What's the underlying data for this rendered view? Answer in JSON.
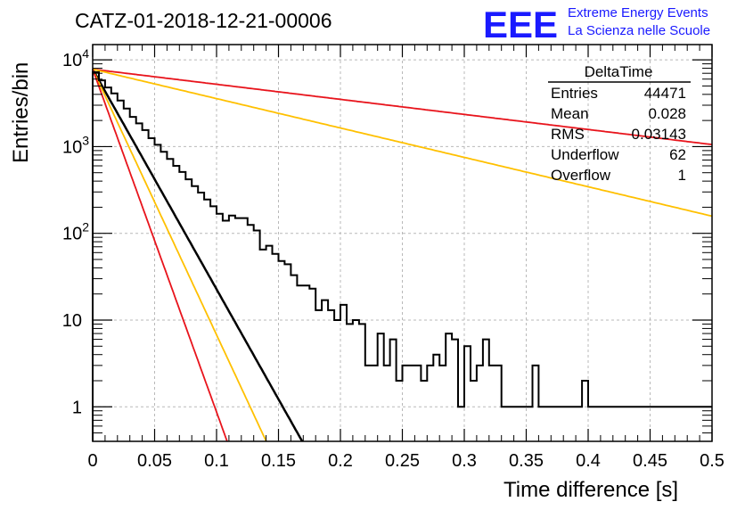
{
  "header": {
    "title": "CATZ-01-2018-12-21-00006",
    "logo_text": "EEE",
    "logo_line1": "Extreme Energy Events",
    "logo_line2": "La Scienza nelle Scuole"
  },
  "stats_box": {
    "name": "DeltaTime",
    "rows": [
      {
        "label": "Entries",
        "value": "44471"
      },
      {
        "label": "Mean",
        "value": "0.028"
      },
      {
        "label": "RMS",
        "value": "0.03143"
      },
      {
        "label": "Underflow",
        "value": "62"
      },
      {
        "label": "Overflow",
        "value": "1"
      }
    ]
  },
  "colors": {
    "histogram": "#000000",
    "fit_main": "#000000",
    "curve_red": "#e8141c",
    "curve_orange": "#ffc000",
    "logo": "#1a1aff"
  },
  "chart_data": {
    "type": "line",
    "title": "CATZ-01-2018-12-21-00006",
    "xlabel": "Time difference [s]",
    "ylabel": "Entries/bin",
    "xlim": [
      0,
      0.5
    ],
    "ylim": [
      0.4,
      15000
    ],
    "ylog": true,
    "grid": true,
    "x_ticks": [
      "0",
      "0.05",
      "0.1",
      "0.15",
      "0.2",
      "0.25",
      "0.3",
      "0.35",
      "0.4",
      "0.45",
      "0.5"
    ],
    "y_ticks": [
      {
        "value": 1,
        "label": "1"
      },
      {
        "value": 10,
        "label": "10"
      },
      {
        "value": 100,
        "label": "10",
        "sup": "2"
      },
      {
        "value": 1000,
        "label": "10",
        "sup": "3"
      },
      {
        "value": 10000,
        "label": "10",
        "sup": "4"
      }
    ],
    "histogram": {
      "bin_width": 0.005,
      "values": [
        7200,
        5800,
        4800,
        4100,
        3400,
        2750,
        2200,
        1850,
        1550,
        1250,
        1050,
        870,
        720,
        600,
        510,
        420,
        350,
        295,
        245,
        205,
        168,
        140,
        160,
        150,
        150,
        125,
        108,
        65,
        72,
        58,
        48,
        44,
        33,
        25,
        25,
        23,
        13,
        17,
        13,
        10,
        15,
        9,
        10,
        9,
        3,
        3,
        7,
        3,
        6,
        2,
        3,
        3,
        3,
        2,
        3,
        4,
        3,
        7,
        6,
        1,
        5,
        2,
        3,
        6,
        3,
        3,
        1,
        1,
        1,
        1,
        1,
        3,
        1,
        1,
        1,
        1,
        1,
        1,
        1,
        2,
        1,
        1,
        1,
        1,
        1,
        1,
        1,
        1,
        1,
        1,
        1,
        1,
        1,
        1,
        1,
        1,
        1,
        1,
        1,
        1
      ]
    },
    "series": [
      {
        "x0": 0,
        "y0": 7800,
        "slope": -58.4,
        "color_key": "fit_main",
        "width": 2.5
      },
      {
        "x0": 0,
        "y0": 7800,
        "slope": -4.0,
        "color_key": "curve_red",
        "width": 1.8
      },
      {
        "x0": 0,
        "y0": 7800,
        "slope": -7.8,
        "color_key": "curve_orange",
        "width": 1.8
      },
      {
        "x0": 0,
        "y0": 7800,
        "slope": -70.5,
        "color_key": "curve_orange",
        "width": 1.8
      },
      {
        "x0": 0,
        "y0": 7800,
        "slope": -91.0,
        "color_key": "curve_red",
        "width": 1.8
      }
    ]
  }
}
